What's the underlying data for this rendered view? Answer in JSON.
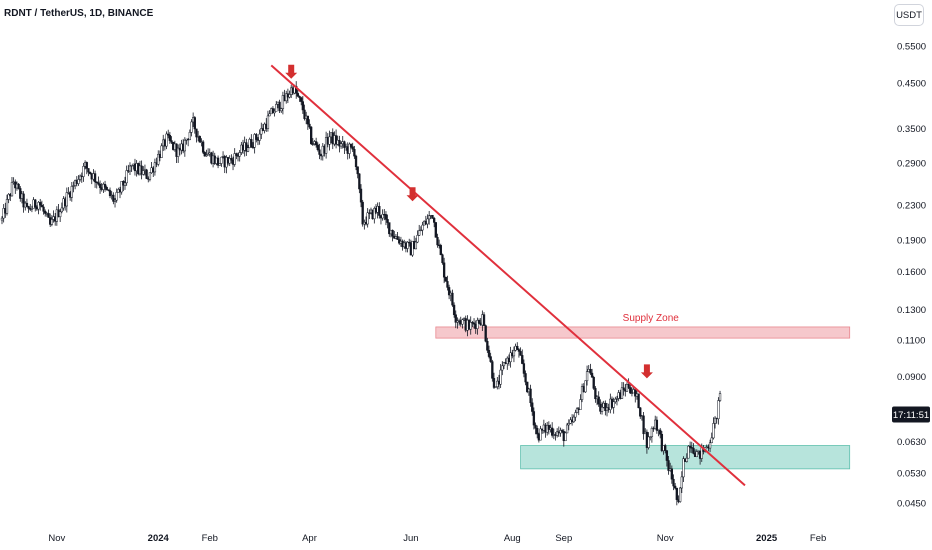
{
  "header": {
    "title": "RDNT / TetherUS, 1D, BINANCE",
    "unit": "USDT"
  },
  "colors": {
    "candle": "#131722",
    "trendline": "#e0303c",
    "arrow": "#d32f2f",
    "supply_fill": "#f6c8cc",
    "supply_border": "#e88890",
    "demand_fill": "#b7e4dc",
    "demand_border": "#5fbfae",
    "axis_text": "#131722",
    "price_badge_bg": "#131722"
  },
  "chart_data": {
    "type": "candlestick",
    "title": "RDNT / TetherUS, 1D, BINANCE",
    "y_scale": "log",
    "ylim": [
      0.0405,
      0.635
    ],
    "x_ticks": [
      {
        "date": "2023-11-01",
        "label": "Nov",
        "bold": false
      },
      {
        "date": "2024-01-01",
        "label": "2024",
        "bold": true
      },
      {
        "date": "2024-02-01",
        "label": "Feb",
        "bold": false
      },
      {
        "date": "2024-04-01",
        "label": "Apr",
        "bold": false
      },
      {
        "date": "2024-06-01",
        "label": "Jun",
        "bold": false
      },
      {
        "date": "2024-08-01",
        "label": "Aug",
        "bold": false
      },
      {
        "date": "2024-09-01",
        "label": "Sep",
        "bold": false
      },
      {
        "date": "2024-11-01",
        "label": "Nov",
        "bold": false
      },
      {
        "date": "2025-01-01",
        "label": "2025",
        "bold": true
      },
      {
        "date": "2025-02-01",
        "label": "Feb",
        "bold": false
      }
    ],
    "x_range": [
      "2023-09-29",
      "2025-02-25"
    ],
    "y_ticks": [
      {
        "value": 0.55,
        "label": "0.5500"
      },
      {
        "value": 0.45,
        "label": "0.4500"
      },
      {
        "value": 0.35,
        "label": "0.3500"
      },
      {
        "value": 0.29,
        "label": "0.2900"
      },
      {
        "value": 0.23,
        "label": "0.2300"
      },
      {
        "value": 0.19,
        "label": "0.1900"
      },
      {
        "value": 0.16,
        "label": "0.1600"
      },
      {
        "value": 0.13,
        "label": "0.1300"
      },
      {
        "value": 0.11,
        "label": "0.1100"
      },
      {
        "value": 0.09,
        "label": "0.0900"
      },
      {
        "value": 0.063,
        "label": "0.0630"
      },
      {
        "value": 0.053,
        "label": "0.0530"
      },
      {
        "value": 0.045,
        "label": "0.0450"
      }
    ],
    "price_path": [
      [
        "2023-09-29",
        0.212
      ],
      [
        "2023-10-06",
        0.262
      ],
      [
        "2023-10-14",
        0.223
      ],
      [
        "2023-10-21",
        0.235
      ],
      [
        "2023-10-28",
        0.205
      ],
      [
        "2023-11-08",
        0.245
      ],
      [
        "2023-11-18",
        0.285
      ],
      [
        "2023-11-28",
        0.255
      ],
      [
        "2023-12-06",
        0.235
      ],
      [
        "2023-12-16",
        0.285
      ],
      [
        "2023-12-26",
        0.27
      ],
      [
        "2024-01-06",
        0.33
      ],
      [
        "2024-01-14",
        0.305
      ],
      [
        "2024-01-22",
        0.36
      ],
      [
        "2024-01-29",
        0.31
      ],
      [
        "2024-02-06",
        0.29
      ],
      [
        "2024-02-14",
        0.295
      ],
      [
        "2024-02-22",
        0.315
      ],
      [
        "2024-03-01",
        0.335
      ],
      [
        "2024-03-10",
        0.385
      ],
      [
        "2024-03-17",
        0.41
      ],
      [
        "2024-03-22",
        0.44
      ],
      [
        "2024-03-28",
        0.39
      ],
      [
        "2024-04-02",
        0.33
      ],
      [
        "2024-04-08",
        0.305
      ],
      [
        "2024-04-13",
        0.335
      ],
      [
        "2024-04-22",
        0.315
      ],
      [
        "2024-04-28",
        0.31
      ],
      [
        "2024-05-03",
        0.21
      ],
      [
        "2024-05-12",
        0.225
      ],
      [
        "2024-05-22",
        0.195
      ],
      [
        "2024-06-01",
        0.18
      ],
      [
        "2024-06-08",
        0.205
      ],
      [
        "2024-06-14",
        0.22
      ],
      [
        "2024-06-20",
        0.165
      ],
      [
        "2024-06-28",
        0.125
      ],
      [
        "2024-07-06",
        0.118
      ],
      [
        "2024-07-14",
        0.124
      ],
      [
        "2024-07-22",
        0.083
      ],
      [
        "2024-07-28",
        0.098
      ],
      [
        "2024-08-04",
        0.105
      ],
      [
        "2024-08-10",
        0.085
      ],
      [
        "2024-08-16",
        0.065
      ],
      [
        "2024-08-22",
        0.068
      ],
      [
        "2024-09-01",
        0.065
      ],
      [
        "2024-09-08",
        0.072
      ],
      [
        "2024-09-16",
        0.095
      ],
      [
        "2024-09-22",
        0.075
      ],
      [
        "2024-10-02",
        0.079
      ],
      [
        "2024-10-10",
        0.086
      ],
      [
        "2024-10-16",
        0.078
      ],
      [
        "2024-10-21",
        0.062
      ],
      [
        "2024-10-26",
        0.071
      ],
      [
        "2024-11-01",
        0.058
      ],
      [
        "2024-11-06",
        0.05
      ],
      [
        "2024-11-09",
        0.044
      ],
      [
        "2024-11-12",
        0.056
      ],
      [
        "2024-11-16",
        0.063
      ],
      [
        "2024-11-21",
        0.058
      ],
      [
        "2024-11-27",
        0.062
      ],
      [
        "2024-12-01",
        0.07
      ],
      [
        "2024-12-04",
        0.08
      ]
    ],
    "annotations": {
      "trendline": {
        "start": [
          "2024-03-09",
          0.495
        ],
        "end": [
          "2024-12-19",
          0.0495
        ]
      },
      "arrows": [
        [
          "2024-03-21",
          0.46
        ],
        [
          "2024-06-02",
          0.235
        ],
        [
          "2024-10-21",
          0.089
        ]
      ],
      "supply_zone": {
        "label": "Supply Zone",
        "from": "2024-06-16",
        "to": "2025-02-20",
        "low": 0.111,
        "high": 0.118
      },
      "demand_zone": {
        "label": "",
        "from": "2024-08-06",
        "to": "2025-02-20",
        "low": 0.0542,
        "high": 0.0616
      }
    },
    "last_price_label": "17:11:51",
    "last_price_value": 0.073
  }
}
